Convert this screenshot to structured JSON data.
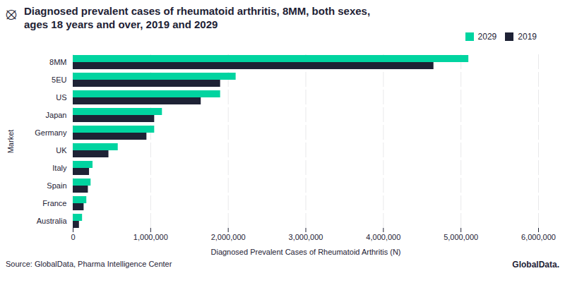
{
  "chart_data": {
    "type": "bar",
    "orientation": "horizontal",
    "title": "Diagnosed prevalent cases of rheumatoid arthritis, 8MM, both sexes,",
    "subtitle": "ages 18 years and over, 2019 and 2029",
    "xlabel": "Diagnosed Prevalent Cases of Rheumatoid Arthritis (N)",
    "ylabel": "Market",
    "annotations": [
      "⦻",
      "Source: GlobalData, Pharma Intelligence Center",
      "GlobalData."
    ],
    "categories": [
      "Australia",
      "France",
      "Spain",
      "Italy",
      "UK",
      "Germany",
      "Japan",
      "US",
      "5EU",
      "8MM"
    ],
    "series": [
      {
        "name": "2029",
        "color": "#00d4a0",
        "values": [
          120000,
          175000,
          230000,
          255000,
          580000,
          1050000,
          1150000,
          1900000,
          2100000,
          5100000
        ]
      },
      {
        "name": "2019",
        "color": "#1e2235",
        "values": [
          80000,
          140000,
          195000,
          210000,
          460000,
          950000,
          1050000,
          1650000,
          1900000,
          4650000
        ]
      }
    ],
    "xlim": [
      0,
      6000000
    ],
    "xticks": [
      0,
      {
        "value": 1000000,
        "label": "1,000,000"
      },
      {
        "value": 2000000,
        "label": "2,000,000"
      },
      {
        "value": 3000000,
        "label": "3,000,000"
      },
      {
        "value": 4000000,
        "label": "4,000,000"
      },
      {
        "value": 5000000,
        "label": "5,000,000"
      },
      {
        "value": 6000000,
        "label": "6,000,000"
      }
    ],
    "grid": true,
    "legend": "right"
  }
}
